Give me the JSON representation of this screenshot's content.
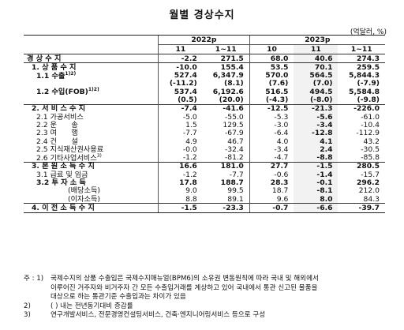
{
  "title": "월별 경상수지",
  "unit": "(억달러, %)",
  "header": {
    "year1": "2022p",
    "year2": "2023p",
    "cols": [
      "11",
      "1~11",
      "10",
      "11",
      "1~11"
    ]
  },
  "rows": [
    {
      "label": "경 상 수 지",
      "vals": [
        "-2.2",
        "271.5",
        "68.0",
        "40.6",
        "274.3"
      ]
    },
    {
      "label": "1. 상 품 수 지",
      "vals": [
        "-10.0",
        "155.4",
        "53.5",
        "70.1",
        "259.5"
      ]
    },
    {
      "label": "1.1 수출",
      "sup": "1)2)",
      "vals": [
        "527.4",
        "6,347.9",
        "570.0",
        "564.5",
        "5,844.3"
      ]
    },
    {
      "label": "",
      "vals": [
        "(-11.2)",
        "(8.1)",
        "(7.6)",
        "(7.0)",
        "(-7.9)"
      ]
    },
    {
      "label": "1.2 수입(FOB)",
      "sup": "1)2)",
      "vals": [
        "537.4",
        "6,192.6",
        "516.5",
        "494.5",
        "5,584.8"
      ]
    },
    {
      "label": "",
      "vals": [
        "(0.5)",
        "(20.0)",
        "(-4.3)",
        "(-8.0)",
        "(-9.8)"
      ]
    },
    {
      "label": "2. 서 비 스 수 지",
      "vals": [
        "-7.4",
        "-41.6",
        "-12.5",
        "-21.3",
        "-226.0"
      ]
    },
    {
      "label": "2.1 가공서비스",
      "vals": [
        "-5.0",
        "-55.0",
        "-5.3",
        "-5.6",
        "-61.0"
      ]
    },
    {
      "label": "2.2 운　　송",
      "vals": [
        "1.5",
        "129.5",
        "-3.0",
        "-3.4",
        "-10.4"
      ]
    },
    {
      "label": "2.3 여　　행",
      "vals": [
        "-7.7",
        "-67.9",
        "-6.4",
        "-12.8",
        "-112.9"
      ]
    },
    {
      "label": "2.4 건　　설",
      "vals": [
        "4.9",
        "46.7",
        "4.0",
        "4.1",
        "43.2"
      ]
    },
    {
      "label": "2.5 지식재산권사용료",
      "vals": [
        "-0.0",
        "-32.4",
        "-3.4",
        "2.4",
        "-30.5"
      ]
    },
    {
      "label": "2.6 기타사업서비스",
      "sup": "3)",
      "vals": [
        "-1.2",
        "-81.2",
        "-4.7",
        "-8.8",
        "-85.8"
      ]
    },
    {
      "label": "3. 본 원 소 득 수 지",
      "vals": [
        "16.6",
        "181.0",
        "27.7",
        "-1.5",
        "280.5"
      ]
    },
    {
      "label": "3.1 급료 및 임금",
      "vals": [
        "-1.2",
        "-7.7",
        "-0.6",
        "-1.4",
        "-15.7"
      ]
    },
    {
      "label": "3.2 투 자 소 득",
      "vals": [
        "17.8",
        "188.7",
        "28.3",
        "-0.1",
        "296.2"
      ]
    },
    {
      "label": "(배당소득)",
      "vals": [
        "9.0",
        "99.5",
        "18.7",
        "-8.1",
        "212.0"
      ]
    },
    {
      "label": "(이자소득)",
      "vals": [
        "8.8",
        "89.1",
        "9.6",
        "8.0",
        "84.3"
      ]
    },
    {
      "label": "4. 이 전 소 득 수 지",
      "vals": [
        "-1.5",
        "-23.3",
        "-0.7",
        "-6.6",
        "-39.7"
      ]
    }
  ],
  "notes": [
    {
      "key": "주 : 1)",
      "text": "국제수지의 상품 수출입은 국제수지매뉴얼(BPM6)의 소유권 변동원칙에 따라 국내 및 해외에서"
    },
    {
      "key": "",
      "text": "이루어진 거주자와 비거주자 간 모든 수출입거래를 계상하고 있어 국내에서 통관 신고된 물품을"
    },
    {
      "key": "",
      "text": "대상으로 하는 통관기준 수출입과는 차이가 있음"
    },
    {
      "key": "2)",
      "text": "( ) 내는 전년동기대비 증감률"
    },
    {
      "key": "3)",
      "text": "연구개발서비스, 전문경영컨설팅서비스, 건축·엔지니어링서비스 등으로 구성"
    }
  ]
}
